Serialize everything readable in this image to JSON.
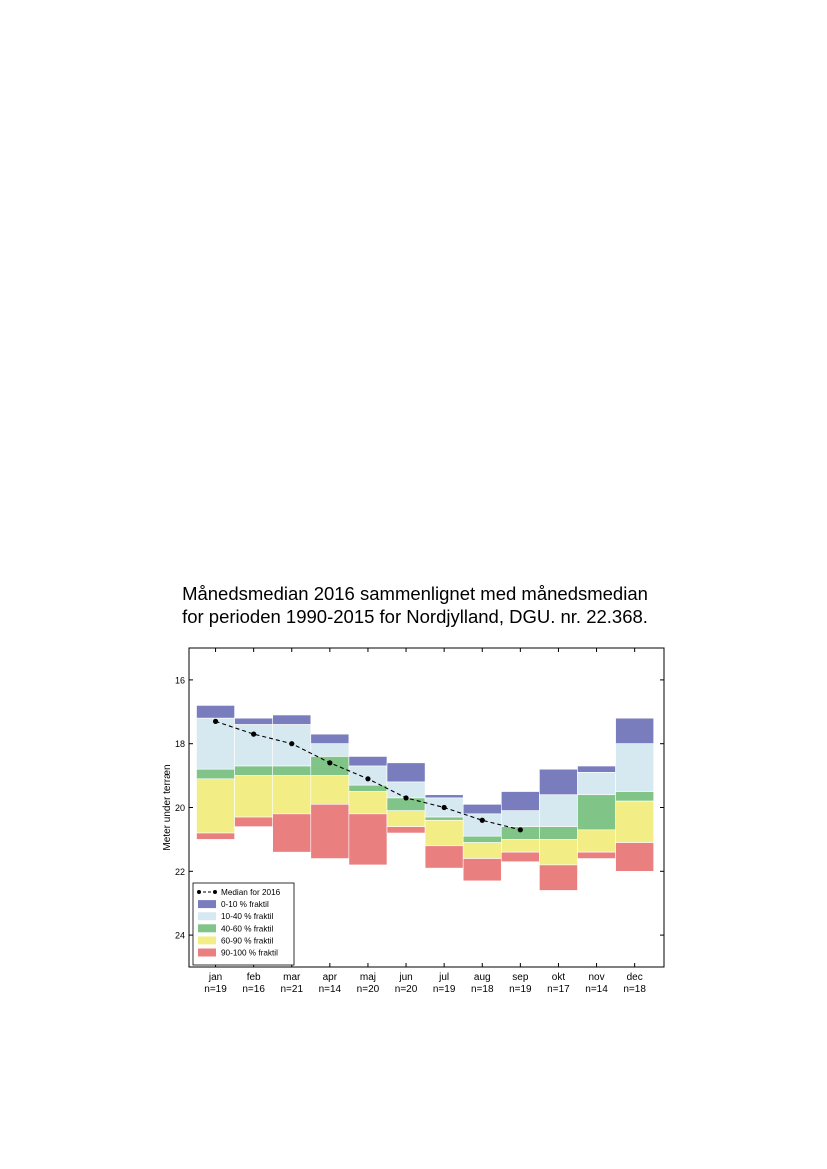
{
  "chart_data": {
    "type": "bar",
    "title_lines": [
      "Månedsmedian 2016 sammenlignet med månedsmedian",
      "for perioden 1990-2015 for Nordjylland, DGU. nr. 22.368."
    ],
    "xlabel": "",
    "ylabel": "Meter under terræn",
    "ylim": [
      25,
      15
    ],
    "y_inverted": true,
    "yticks": [
      16,
      18,
      20,
      22,
      24
    ],
    "grid": false,
    "legend_position": "lower-left",
    "categories": [
      "jan",
      "feb",
      "mar",
      "apr",
      "maj",
      "jun",
      "jul",
      "aug",
      "sep",
      "okt",
      "nov",
      "dec"
    ],
    "n_labels": [
      "n=19",
      "n=16",
      "n=21",
      "n=14",
      "n=20",
      "n=20",
      "n=19",
      "n=18",
      "n=19",
      "n=17",
      "n=14",
      "n=18"
    ],
    "quantile_bounds": [
      [
        16.8,
        17.2,
        18.8,
        19.1,
        20.8,
        21.0
      ],
      [
        17.2,
        17.4,
        18.7,
        19.0,
        20.3,
        20.6
      ],
      [
        17.1,
        17.4,
        18.7,
        19.0,
        20.2,
        21.4
      ],
      [
        17.7,
        18.0,
        18.4,
        19.0,
        19.9,
        21.6
      ],
      [
        18.4,
        18.7,
        19.3,
        19.5,
        20.2,
        21.8
      ],
      [
        18.6,
        19.2,
        19.7,
        20.1,
        20.6,
        20.8
      ],
      [
        19.6,
        19.7,
        20.3,
        20.4,
        21.2,
        21.9
      ],
      [
        19.9,
        20.2,
        20.9,
        21.1,
        21.6,
        22.3
      ],
      [
        19.5,
        20.1,
        20.6,
        21.0,
        21.4,
        21.7
      ],
      [
        18.8,
        19.6,
        20.6,
        21.0,
        21.8,
        22.6
      ],
      [
        18.7,
        18.9,
        19.6,
        20.7,
        21.4,
        21.6
      ],
      [
        17.2,
        18.0,
        19.5,
        19.8,
        21.1,
        22.0
      ]
    ],
    "series": [
      {
        "name": "0-10 % fraktil",
        "color": "#7a7dbd"
      },
      {
        "name": "10-40 % fraktil",
        "color": "#d6e9f1"
      },
      {
        "name": "40-60 % fraktil",
        "color": "#80c488"
      },
      {
        "name": "60-90 % fraktil",
        "color": "#f2ee85"
      },
      {
        "name": "90-100 % fraktil",
        "color": "#ea7f80"
      }
    ],
    "median_2016": {
      "name": "Median for 2016",
      "x": [
        "jan",
        "feb",
        "mar",
        "apr",
        "maj",
        "jun",
        "jul",
        "aug",
        "sep"
      ],
      "y": [
        17.3,
        17.7,
        18.0,
        18.6,
        19.1,
        19.7,
        20.0,
        20.4,
        20.7
      ],
      "style": "dashed-black-dots"
    }
  }
}
